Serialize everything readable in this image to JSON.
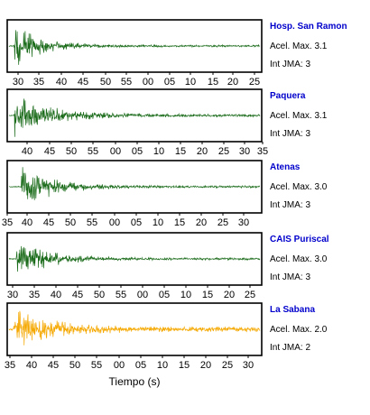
{
  "chart_data": [
    {
      "type": "line",
      "station": "Hosp. San Ramon",
      "accel_label": "Acel. Max. 3.1",
      "int_label": "Int JMA: 3",
      "color": "#1a6b1a",
      "tick_labels": [
        "30",
        "35",
        "40",
        "45",
        "50",
        "55",
        "00",
        "05",
        "10",
        "15",
        "20",
        "25"
      ],
      "onset": 0.02,
      "peak_amp": 1.0,
      "noise": 0.05,
      "decay": 3.2
    },
    {
      "type": "line",
      "station": "Paquera",
      "accel_label": "Acel. Max. 3.1",
      "int_label": "Int JMA: 3",
      "color": "#1a6b1a",
      "tick_labels": [
        "40",
        "45",
        "50",
        "55",
        "00",
        "05",
        "10",
        "15",
        "20",
        "25",
        "30",
        "35"
      ],
      "onset": 0.02,
      "peak_amp": 1.0,
      "noise": 0.06,
      "decay": 2.2
    },
    {
      "type": "line",
      "station": "Atenas",
      "accel_label": "Acel. Max. 3.0",
      "int_label": "Int JMA: 3",
      "color": "#1a6b1a",
      "tick_labels": [
        "35",
        "40",
        "45",
        "50",
        "55",
        "00",
        "05",
        "10",
        "15",
        "20",
        "25",
        "30"
      ],
      "onset": 0.05,
      "peak_amp": 0.9,
      "noise": 0.05,
      "decay": 2.6,
      "spike_at": 0.16
    },
    {
      "type": "line",
      "station": "CAIS Puriscal",
      "accel_label": "Acel. Max. 3.0",
      "int_label": "Int JMA: 3",
      "color": "#1a6b1a",
      "tick_labels": [
        "30",
        "35",
        "40",
        "45",
        "50",
        "55",
        "00",
        "05",
        "10",
        "15",
        "20",
        "25"
      ],
      "onset": 0.03,
      "peak_amp": 1.0,
      "noise": 0.05,
      "decay": 2.9
    },
    {
      "type": "line",
      "station": "La Sabana",
      "accel_label": "Acel. Max. 2.0",
      "int_label": "Int JMA: 2",
      "color": "#f5a800",
      "tick_labels": [
        "35",
        "40",
        "45",
        "50",
        "55",
        "00",
        "05",
        "10",
        "15",
        "20",
        "25",
        "30"
      ],
      "onset": 0.02,
      "peak_amp": 1.0,
      "noise": 0.12,
      "decay": 2.4
    }
  ],
  "xlabel": "Tiempo (s)"
}
